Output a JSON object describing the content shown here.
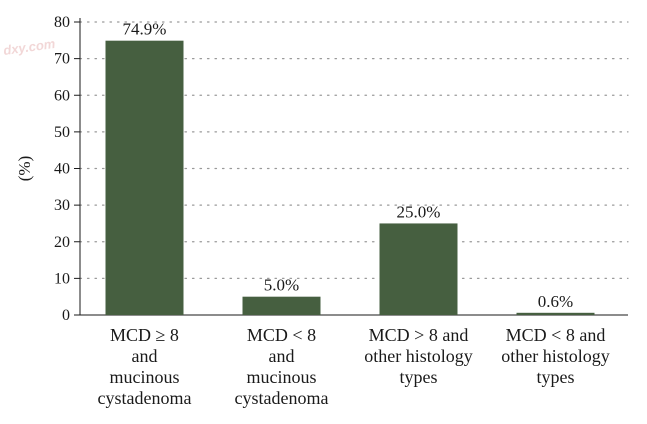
{
  "watermark": "dxy.com",
  "chart_data": {
    "type": "bar",
    "ylabel": "(%)",
    "ylim": [
      0,
      80
    ],
    "yticks": [
      0,
      10,
      20,
      30,
      40,
      50,
      60,
      70,
      80
    ],
    "grid": "horizontal dotted",
    "bar_color": "#465f40",
    "categories": [
      [
        "MCD ≥ 8",
        "and",
        "mucinous",
        "cystadenoma"
      ],
      [
        "MCD < 8",
        "and",
        "mucinous",
        "cystadenoma"
      ],
      [
        "MCD > 8 and",
        "other histology",
        "types"
      ],
      [
        "MCD < 8 and",
        "other histology",
        "types"
      ]
    ],
    "values": [
      74.9,
      5.0,
      25.0,
      0.6
    ],
    "data_labels": [
      "74.9%",
      "5.0%",
      "25.0%",
      "0.6%"
    ]
  }
}
